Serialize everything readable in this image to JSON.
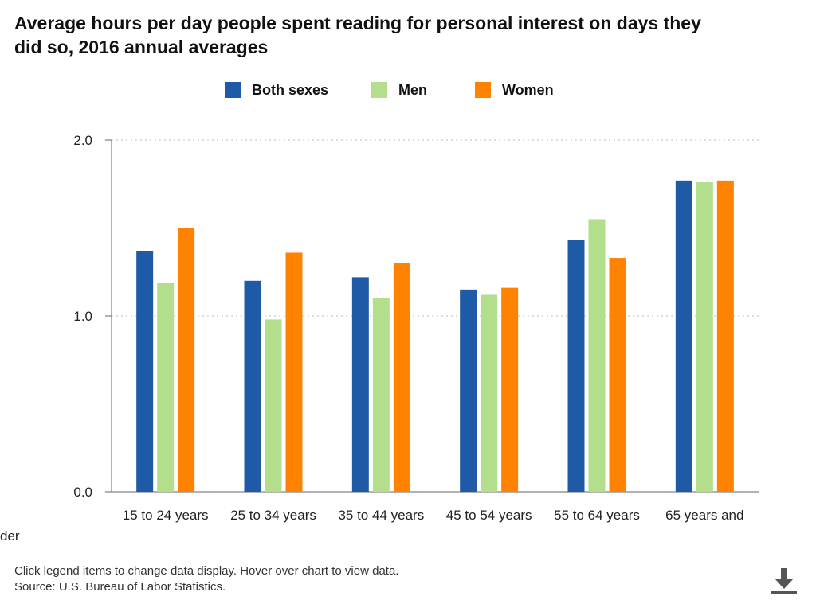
{
  "chart_data": {
    "type": "bar",
    "title": "Average hours per day people spent reading for personal interest on days they did so, 2016 annual averages",
    "categories": [
      "15 to 24 years",
      "25 to 34 years",
      "35 to 44 years",
      "45 to 54 years",
      "55 to 64 years",
      "65 years and"
    ],
    "series": [
      {
        "name": "Both sexes",
        "color": "#1f5aa6",
        "values": [
          1.37,
          1.2,
          1.22,
          1.15,
          1.43,
          1.77
        ]
      },
      {
        "name": "Men",
        "color": "#b3df8c",
        "values": [
          1.19,
          0.98,
          1.1,
          1.12,
          1.55,
          1.76
        ]
      },
      {
        "name": "Women",
        "color": "#ff8200",
        "values": [
          1.5,
          1.36,
          1.3,
          1.16,
          1.33,
          1.77
        ]
      }
    ],
    "yticks": [
      "0.0",
      "1.0",
      "2.0"
    ],
    "ylim": [
      0,
      2.0
    ],
    "grid": true,
    "legend_position": "top"
  },
  "overflow_text": "der",
  "footer": {
    "note": "Click legend items to change data display. Hover over chart to view data.",
    "source": "Source: U.S. Bureau of Labor Statistics."
  },
  "icons": {
    "download": "download-icon"
  }
}
